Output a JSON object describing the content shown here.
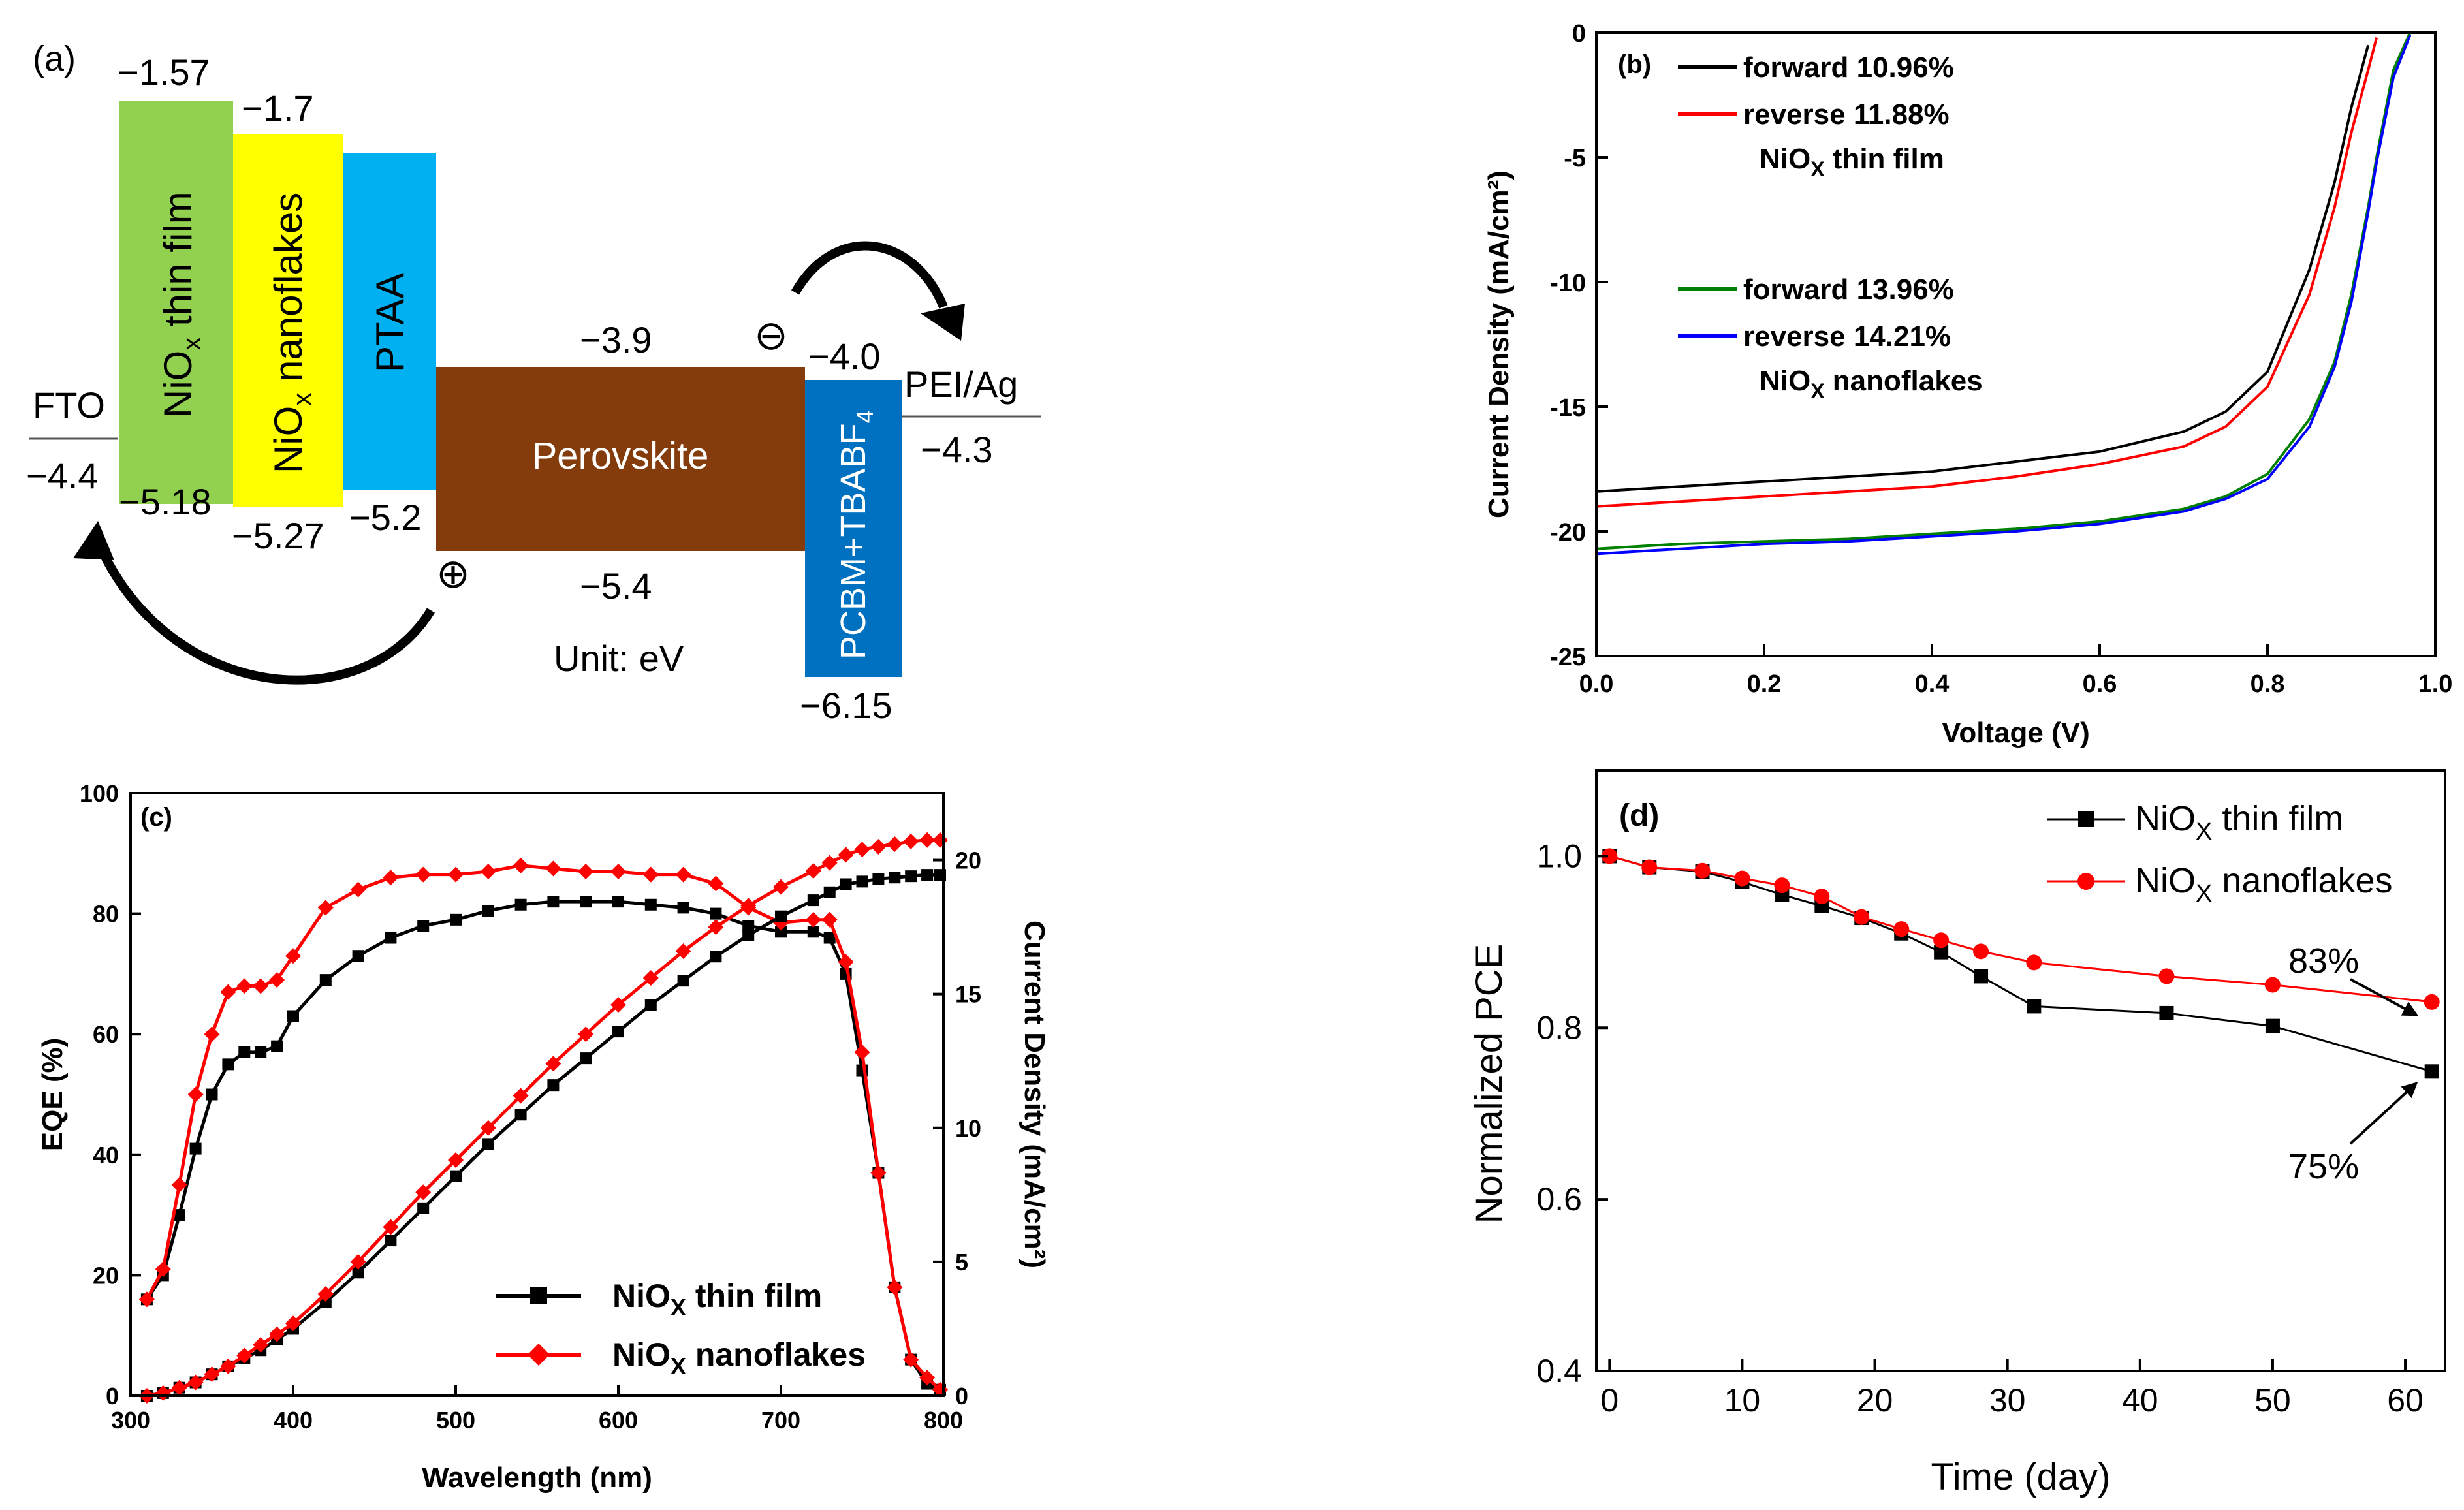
{
  "panels": {
    "a": {
      "label": "(a)",
      "unit": "Unit: eV",
      "fto": {
        "name": "FTO",
        "level": "−4.4"
      },
      "niox_film": {
        "name": "NiO",
        "sub": "x",
        "rest": " thin film",
        "top": "−1.57",
        "bottom": "−5.18",
        "color": "#92d050"
      },
      "niox_flakes": {
        "name": "NiO",
        "sub": "x",
        "rest": " nanoflakes",
        "top": "−1.7",
        "bottom": "−5.27",
        "color": "#ffff00"
      },
      "ptaa": {
        "name": "PTAA",
        "bottom": "−5.2",
        "color": "#00b0f0"
      },
      "perovskite": {
        "name": "Perovskite",
        "top": "−3.9",
        "bottom": "−5.4",
        "color": "#843c0c"
      },
      "pcbm": {
        "name": "PCBM+TBABF",
        "sub": "4",
        "top": "−4.0",
        "bottom": "−6.15",
        "color": "#0070c0"
      },
      "pei": {
        "name": "PEI/Ag",
        "level": "−4.3"
      },
      "hole_symbol": "⊕",
      "electron_symbol": "⊖"
    },
    "b": {
      "label": "(b)",
      "legend_groups": [
        {
          "title_main": "NiO",
          "title_sub": "X",
          "title_rest": " thin film",
          "entries": [
            {
              "label": "forward 10.96%",
              "color": "#000000"
            },
            {
              "label": "reverse 11.88%",
              "color": "#ff0000"
            }
          ]
        },
        {
          "title_main": "NiO",
          "title_sub": "X",
          "title_rest": " nanoflakes",
          "entries": [
            {
              "label": "forward 13.96%",
              "color": "#008000"
            },
            {
              "label": "reverse 14.21%",
              "color": "#0000ff"
            }
          ]
        }
      ]
    },
    "c": {
      "label": "(c)",
      "legend": [
        {
          "main": "NiO",
          "sub": "X",
          "rest": " thin film",
          "color": "#000000"
        },
        {
          "main": "NiO",
          "sub": "X",
          "rest": " nanoflakes",
          "color": "#ff0000"
        }
      ]
    },
    "d": {
      "label": "(d)",
      "legend": [
        {
          "main": "NiO",
          "sub": "X",
          "rest": " thin film",
          "color": "#000000"
        },
        {
          "main": "NiO",
          "sub": "X",
          "rest": " nanoflakes",
          "color": "#ff0000"
        }
      ],
      "annotations": [
        "83%",
        "75%"
      ]
    }
  },
  "chart_data": [
    {
      "panel": "b",
      "type": "line",
      "xlabel": "Voltage (V)",
      "ylabel": "Current Density (mA/cm²)",
      "xlim": [
        0.0,
        1.0
      ],
      "ylim": [
        -25,
        0
      ],
      "xticks": [
        "0.0",
        "0.2",
        "0.4",
        "0.6",
        "0.8",
        "1.0"
      ],
      "yticks": [
        "0",
        "-5",
        "-10",
        "-15",
        "-20",
        "-25"
      ],
      "x": [
        0.0,
        0.1,
        0.2,
        0.3,
        0.4,
        0.5,
        0.6,
        0.7,
        0.75,
        0.8,
        0.85,
        0.88,
        0.9,
        0.92,
        0.93,
        0.95,
        0.97,
        0.98
      ],
      "series": [
        {
          "name": "forward 10.96%",
          "color": "#000000",
          "values": [
            -18.4,
            -18.2,
            -18.0,
            -17.8,
            -17.6,
            -17.2,
            -16.8,
            -16.0,
            -15.2,
            -13.6,
            -9.5,
            -6.0,
            -3.0,
            -0.5,
            null,
            null,
            null,
            null
          ]
        },
        {
          "name": "reverse 11.88%",
          "color": "#ff0000",
          "values": [
            -19.0,
            -18.8,
            -18.6,
            -18.4,
            -18.2,
            -17.8,
            -17.3,
            -16.6,
            -15.8,
            -14.2,
            -10.5,
            -7.0,
            -4.0,
            -1.5,
            -0.2,
            null,
            null,
            null
          ]
        },
        {
          "name": "forward 13.96%",
          "color": "#008000",
          "values": [
            -20.7,
            -20.5,
            -20.4,
            -20.3,
            -20.1,
            -19.9,
            -19.6,
            -19.1,
            -18.6,
            -17.7,
            -15.5,
            -13.2,
            -10.5,
            -7.0,
            -5.0,
            -1.5,
            0.0,
            null
          ]
        },
        {
          "name": "reverse 14.21%",
          "color": "#0000ff",
          "values": [
            -20.9,
            -20.7,
            -20.5,
            -20.4,
            -20.2,
            -20.0,
            -19.7,
            -19.2,
            -18.7,
            -17.9,
            -15.8,
            -13.4,
            -10.8,
            -7.2,
            -5.2,
            -1.8,
            -0.1,
            null
          ]
        }
      ]
    },
    {
      "panel": "c",
      "type": "line",
      "xlabel": "Wavelength (nm)",
      "ylabel": "EQE (%)",
      "y2label": "Current Density (mA/cm²)",
      "xlim": [
        300,
        800
      ],
      "ylim": [
        0,
        100
      ],
      "y2lim": [
        0,
        22.5
      ],
      "xticks": [
        "300",
        "400",
        "500",
        "600",
        "700",
        "800"
      ],
      "yticks": [
        "0",
        "20",
        "40",
        "60",
        "80",
        "100"
      ],
      "y2ticks": [
        "0",
        "5",
        "10",
        "15",
        "20"
      ],
      "x": [
        310,
        320,
        330,
        340,
        350,
        360,
        370,
        380,
        390,
        400,
        420,
        440,
        460,
        480,
        500,
        520,
        540,
        560,
        580,
        600,
        620,
        640,
        660,
        680,
        700,
        720,
        730,
        740,
        750,
        760,
        770,
        780,
        790,
        798
      ],
      "series": [
        {
          "name": "NiOx thin film EQE",
          "axis": "left",
          "color": "#000000",
          "marker": "square",
          "values": [
            16,
            20,
            30,
            41,
            50,
            55,
            57,
            57,
            58,
            63,
            69,
            73,
            76,
            78,
            79,
            80.5,
            81.5,
            82,
            82,
            82,
            81.5,
            81,
            80,
            78,
            77,
            77,
            76,
            70,
            54,
            37,
            18,
            6,
            2,
            1
          ]
        },
        {
          "name": "NiOx nanoflakes EQE",
          "axis": "left",
          "color": "#ff0000",
          "marker": "diamond",
          "values": [
            16,
            21,
            35,
            50,
            60,
            67,
            68,
            68,
            69,
            73,
            81,
            84,
            86,
            86.5,
            86.5,
            87,
            88,
            87.5,
            87,
            87,
            86.5,
            86.5,
            85,
            81,
            78.5,
            79,
            79,
            72,
            57,
            37,
            18,
            6,
            3,
            1
          ]
        },
        {
          "name": "NiOx thin film J",
          "axis": "right",
          "color": "#000000",
          "marker": "square",
          "values": [
            0.0,
            0.1,
            0.3,
            0.5,
            0.8,
            1.1,
            1.4,
            1.7,
            2.1,
            2.5,
            3.5,
            4.6,
            5.8,
            7.0,
            8.2,
            9.4,
            10.5,
            11.6,
            12.6,
            13.6,
            14.6,
            15.5,
            16.4,
            17.2,
            17.9,
            18.5,
            18.8,
            19.1,
            19.2,
            19.3,
            19.35,
            19.4,
            19.45,
            19.45
          ]
        },
        {
          "name": "NiOx nanoflakes J",
          "axis": "right",
          "color": "#ff0000",
          "marker": "diamond",
          "values": [
            0.0,
            0.1,
            0.3,
            0.5,
            0.8,
            1.1,
            1.5,
            1.9,
            2.3,
            2.7,
            3.8,
            5.0,
            6.3,
            7.6,
            8.8,
            10.0,
            11.2,
            12.4,
            13.5,
            14.6,
            15.6,
            16.6,
            17.5,
            18.3,
            19.0,
            19.6,
            19.9,
            20.2,
            20.4,
            20.5,
            20.6,
            20.7,
            20.75,
            20.75
          ]
        }
      ]
    },
    {
      "panel": "d",
      "type": "line",
      "xlabel": "Time (day)",
      "ylabel": "Normalized PCE",
      "xlim": [
        -1,
        63
      ],
      "ylim": [
        0.4,
        1.1
      ],
      "xticks": [
        "0",
        "10",
        "20",
        "30",
        "40",
        "50",
        "60"
      ],
      "yticks": [
        "0.4",
        "0.6",
        "0.8",
        "1.0"
      ],
      "x": [
        0,
        3,
        7,
        10,
        13,
        16,
        19,
        22,
        25,
        28,
        32,
        42,
        50,
        62
      ],
      "series": [
        {
          "name": "NiOx thin film",
          "color": "#000000",
          "marker": "square",
          "values": [
            1.0,
            0.987,
            0.982,
            0.97,
            0.955,
            0.942,
            0.928,
            0.91,
            0.888,
            0.86,
            0.825,
            0.817,
            0.802,
            0.749
          ]
        },
        {
          "name": "NiOx nanoflakes",
          "color": "#ff0000",
          "marker": "circle",
          "values": [
            1.0,
            0.987,
            0.983,
            0.974,
            0.966,
            0.953,
            0.929,
            0.915,
            0.902,
            0.889,
            0.876,
            0.86,
            0.85,
            0.83
          ]
        }
      ]
    }
  ]
}
